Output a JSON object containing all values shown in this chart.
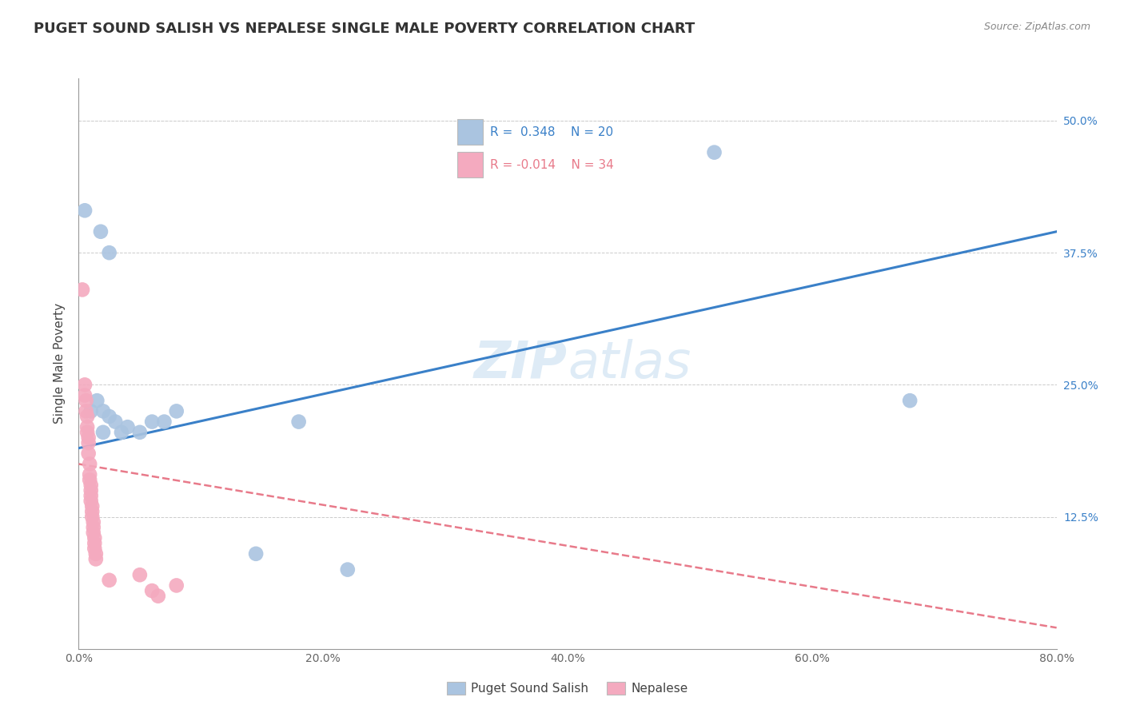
{
  "title": "PUGET SOUND SALISH VS NEPALESE SINGLE MALE POVERTY CORRELATION CHART",
  "source": "Source: ZipAtlas.com",
  "ylabel": "Single Male Poverty",
  "xlim": [
    0.0,
    0.8
  ],
  "ylim": [
    0.0,
    0.54
  ],
  "xticks": [
    0.0,
    0.2,
    0.4,
    0.6,
    0.8
  ],
  "xtick_labels": [
    "0.0%",
    "20.0%",
    "40.0%",
    "60.0%",
    "80.0%"
  ],
  "ytick_labels": [
    "12.5%",
    "25.0%",
    "37.5%",
    "50.0%"
  ],
  "yticks": [
    0.125,
    0.25,
    0.375,
    0.5
  ],
  "legend_labels": [
    "Puget Sound Salish",
    "Nepalese"
  ],
  "legend_r_blue": "R =  0.348",
  "legend_n_blue": "N = 20",
  "legend_r_pink": "R = -0.014",
  "legend_n_pink": "N = 34",
  "blue_color": "#aac4e0",
  "pink_color": "#f4aabf",
  "blue_line_color": "#3a80c8",
  "pink_line_color": "#e87a8a",
  "blue_dots": [
    [
      0.005,
      0.415
    ],
    [
      0.018,
      0.395
    ],
    [
      0.025,
      0.375
    ],
    [
      0.01,
      0.225
    ],
    [
      0.015,
      0.235
    ],
    [
      0.02,
      0.225
    ],
    [
      0.03,
      0.215
    ],
    [
      0.02,
      0.205
    ],
    [
      0.025,
      0.22
    ],
    [
      0.035,
      0.205
    ],
    [
      0.04,
      0.21
    ],
    [
      0.05,
      0.205
    ],
    [
      0.06,
      0.215
    ],
    [
      0.07,
      0.215
    ],
    [
      0.08,
      0.225
    ],
    [
      0.18,
      0.215
    ],
    [
      0.52,
      0.47
    ],
    [
      0.68,
      0.235
    ],
    [
      0.145,
      0.09
    ],
    [
      0.22,
      0.075
    ]
  ],
  "pink_dots": [
    [
      0.003,
      0.34
    ],
    [
      0.005,
      0.25
    ],
    [
      0.005,
      0.24
    ],
    [
      0.006,
      0.235
    ],
    [
      0.006,
      0.225
    ],
    [
      0.007,
      0.22
    ],
    [
      0.007,
      0.21
    ],
    [
      0.007,
      0.205
    ],
    [
      0.008,
      0.2
    ],
    [
      0.008,
      0.195
    ],
    [
      0.008,
      0.185
    ],
    [
      0.009,
      0.175
    ],
    [
      0.009,
      0.165
    ],
    [
      0.009,
      0.16
    ],
    [
      0.01,
      0.155
    ],
    [
      0.01,
      0.15
    ],
    [
      0.01,
      0.145
    ],
    [
      0.01,
      0.14
    ],
    [
      0.011,
      0.135
    ],
    [
      0.011,
      0.13
    ],
    [
      0.011,
      0.125
    ],
    [
      0.012,
      0.12
    ],
    [
      0.012,
      0.115
    ],
    [
      0.012,
      0.11
    ],
    [
      0.013,
      0.105
    ],
    [
      0.013,
      0.1
    ],
    [
      0.013,
      0.095
    ],
    [
      0.014,
      0.09
    ],
    [
      0.014,
      0.085
    ],
    [
      0.05,
      0.07
    ],
    [
      0.08,
      0.06
    ],
    [
      0.06,
      0.055
    ],
    [
      0.065,
      0.05
    ],
    [
      0.025,
      0.065
    ]
  ],
  "blue_trendline": [
    [
      0.0,
      0.19
    ],
    [
      0.8,
      0.395
    ]
  ],
  "pink_trendline": [
    [
      0.0,
      0.175
    ],
    [
      0.8,
      0.02
    ]
  ]
}
